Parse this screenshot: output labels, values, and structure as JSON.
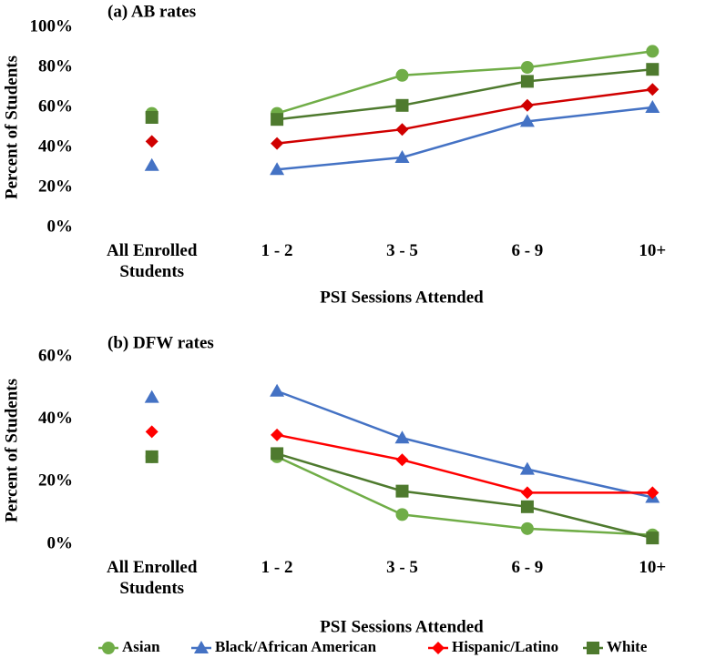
{
  "chart_data": [
    {
      "type": "line",
      "title": "(a) AB rates",
      "y_label": "Percent of Students",
      "x_label": "PSI Sessions Attended",
      "categories": [
        "All Enrolled Students",
        "1 - 2",
        "3 - 5",
        "6 - 9",
        "10+"
      ],
      "ylim": [
        0,
        100
      ],
      "yticks": [
        {
          "value": 0,
          "label": "0%"
        },
        {
          "value": 20,
          "label": "20%"
        },
        {
          "value": 40,
          "label": "40%"
        },
        {
          "value": 60,
          "label": "60%"
        },
        {
          "value": 80,
          "label": "80%"
        },
        {
          "value": 100,
          "label": "100%"
        }
      ],
      "series": [
        {
          "color": "#70ad47",
          "marker": "circle",
          "values": [
            57,
            57,
            76,
            80,
            88
          ]
        },
        {
          "color": "#4472c4",
          "marker": "triangle",
          "values": [
            31,
            29,
            35,
            53,
            60
          ]
        },
        {
          "color": "#d00000",
          "marker": "diamond",
          "values": [
            43,
            42,
            49,
            61,
            69
          ]
        },
        {
          "color": "#4e7a2e",
          "marker": "square",
          "values": [
            55,
            54,
            61,
            73,
            79
          ]
        }
      ]
    },
    {
      "type": "line",
      "title": "(b) DFW rates",
      "y_label": "Percent of Students",
      "x_label": "PSI Sessions Attended",
      "categories": [
        "All Enrolled Students",
        "1 - 2",
        "3 - 5",
        "6 - 9",
        "10+"
      ],
      "ylim": [
        0,
        60
      ],
      "yticks": [
        {
          "value": 0,
          "label": "0%"
        },
        {
          "value": 20,
          "label": "20%"
        },
        {
          "value": 40,
          "label": "40%"
        },
        {
          "value": 60,
          "label": "60%"
        }
      ],
      "series": [
        {
          "name": "Asian",
          "color": "#70ad47",
          "marker": "circle",
          "values": [
            28,
            28,
            9.5,
            5,
            3
          ]
        },
        {
          "name": "Black/African American",
          "color": "#4472c4",
          "marker": "triangle",
          "values": [
            47,
            49,
            34,
            24,
            15
          ]
        },
        {
          "name": "Hispanic/Latino",
          "color": "#ff0000",
          "marker": "diamond",
          "values": [
            36,
            35,
            27,
            16.5,
            16.5
          ]
        },
        {
          "name": "White",
          "color": "#4e7a2e",
          "marker": "square",
          "values": [
            28,
            29,
            17,
            12,
            2
          ]
        }
      ]
    }
  ]
}
